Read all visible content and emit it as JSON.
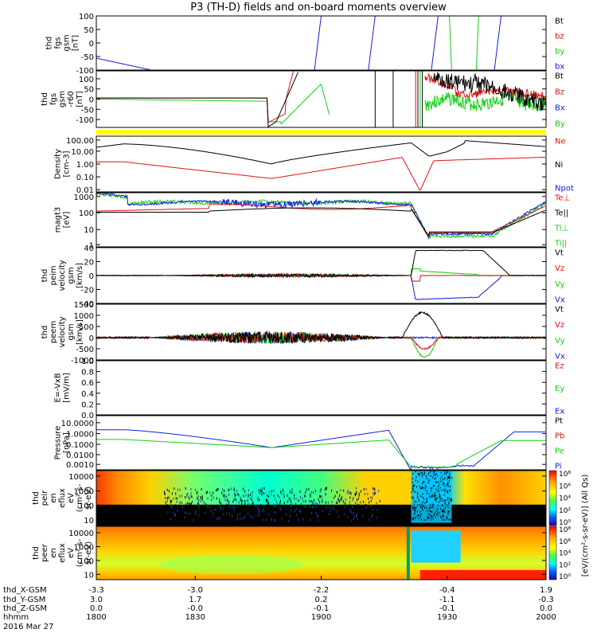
{
  "title": "P3 (TH-D) fields and on-board moments overview",
  "colors": {
    "black": "#000000",
    "red": "#e01010",
    "green": "#10d010",
    "blue": "#1020e0",
    "yellow": "#ffff00"
  },
  "footer": {
    "row_labels": [
      "thd_X-GSM",
      "thd_Y-GSM",
      "thd_Z-GSM",
      "hhmm",
      "2016 Mar 27"
    ],
    "x_gsm": [
      "-3.3",
      "-3.0",
      "-2.2",
      "-0.4",
      "1.9"
    ],
    "y_gsm": [
      "3.0",
      "1.7",
      "0.2",
      "-1.1",
      "-0.3"
    ],
    "z_gsm": [
      "0.0",
      "-0.0",
      "-0.1",
      "-0.1",
      "0.0"
    ],
    "hhmm": [
      "1800",
      "1830",
      "1900",
      "1930",
      "2000"
    ]
  },
  "colorbar": {
    "tick_labels": [
      "10⁸",
      "10⁶",
      "10⁴",
      "10²",
      "10⁰"
    ],
    "label": "[eV/(cm²-s-sr-eV)] (All Qs)"
  },
  "chart_data": [
    {
      "type": "line",
      "panel": "fgs",
      "ylabel": [
        "thd",
        "fgs",
        "gsm",
        "[nT]"
      ],
      "ylim": [
        -100,
        100
      ],
      "yticks": [
        "100",
        "50",
        "0",
        "-50",
        "-100"
      ],
      "legend": [
        {
          "name": "Bt",
          "color": "#000000"
        },
        {
          "name": "bz",
          "color": "#e01010"
        },
        {
          "name": "by",
          "color": "#10d010"
        },
        {
          "name": "bx",
          "color": "#1020e0"
        }
      ]
    },
    {
      "type": "line",
      "panel": "fgs-r",
      "ylabel": [
        "thd",
        "fgs",
        "gsm",
        "-r60",
        "[nT]"
      ],
      "ylim": [
        -120,
        120
      ],
      "yticks": [
        "100",
        "50",
        "0",
        "-50",
        "-100"
      ],
      "legend": [
        {
          "name": "Bt",
          "color": "#000000"
        },
        {
          "name": "Bz",
          "color": "#e01010"
        },
        {
          "name": "Bx",
          "color": "#1020e0"
        },
        {
          "name": "By",
          "color": "#10d010"
        }
      ]
    },
    {
      "type": "line",
      "panel": "density",
      "ylabel": [
        "Density",
        "[cm-3]"
      ],
      "scale": "log",
      "ylim": [
        0.01,
        300
      ],
      "yticks": [
        "100.00",
        "10.00",
        "1.00",
        "0.10",
        "0.01"
      ],
      "legend": [
        {
          "name": "Ne",
          "color": "#e01010"
        },
        {
          "name": "Ni",
          "color": "#000000"
        },
        {
          "name": "Npot",
          "color": "#1020e0"
        }
      ]
    },
    {
      "type": "line",
      "panel": "temperature",
      "ylabel": [
        "magt3",
        "[eV]"
      ],
      "scale": "log",
      "ylim": [
        1,
        10000
      ],
      "yticks": [
        "1000",
        "100",
        "10",
        "1"
      ],
      "legend": [
        {
          "name": "Te⊥",
          "color": "#e01010"
        },
        {
          "name": "Te||",
          "color": "#000000"
        },
        {
          "name": "Ti⊥",
          "color": "#10d010"
        },
        {
          "name": "Ti||",
          "color": "#10d010"
        }
      ]
    },
    {
      "type": "line",
      "panel": "peim-velocity",
      "ylabel": [
        "thd",
        "peim",
        "velocity",
        "gsm",
        "[km/s]"
      ],
      "ylim": [
        -40,
        40
      ],
      "yticks": [
        "40",
        "20",
        "0",
        "-20",
        "-40"
      ],
      "legend": [
        {
          "name": "Vt",
          "color": "#000000"
        },
        {
          "name": "Vz",
          "color": "#e01010"
        },
        {
          "name": "Vy",
          "color": "#10d010"
        },
        {
          "name": "Vx",
          "color": "#1020e0"
        }
      ]
    },
    {
      "type": "line",
      "panel": "peem-velocity",
      "ylabel": [
        "thd",
        "peem",
        "velocity",
        "gsm",
        "[km/s]"
      ],
      "ylim": [
        -1000,
        1500
      ],
      "yticks": [
        "1500",
        "1000",
        "500",
        "0",
        "-500",
        "-1000"
      ],
      "legend": [
        {
          "name": "Vt",
          "color": "#000000"
        },
        {
          "name": "Vz",
          "color": "#e01010"
        },
        {
          "name": "Vy",
          "color": "#10d010"
        },
        {
          "name": "Vx",
          "color": "#1020e0"
        }
      ]
    },
    {
      "type": "line",
      "panel": "efield",
      "ylabel": [
        "E=-VxB",
        "[mV/m]"
      ],
      "ylim": [
        0,
        1
      ],
      "yticks": [
        "1.0",
        "0.8",
        "0.6",
        "0.4",
        "0.2",
        "0.0"
      ],
      "legend": [
        {
          "name": "Ez",
          "color": "#e01010"
        },
        {
          "name": "Ey",
          "color": "#10d010"
        },
        {
          "name": "Ex",
          "color": "#1020e0"
        }
      ]
    },
    {
      "type": "line",
      "panel": "pressure",
      "ylabel": [
        "Pressure",
        "[nPa]"
      ],
      "scale": "log",
      "ylim": [
        0.0003,
        30
      ],
      "yticks": [
        "10.0000",
        "1.0000",
        "0.1000",
        "0.0100",
        "0.0010"
      ],
      "legend": [
        {
          "name": "Pt",
          "color": "#000000"
        },
        {
          "name": "Pb",
          "color": "#e01010"
        },
        {
          "name": "Pe",
          "color": "#10d010"
        },
        {
          "name": "Pi",
          "color": "#1020e0"
        }
      ]
    },
    {
      "type": "heatmap",
      "panel": "peir-spectrogram",
      "ylabel": [
        "thd",
        "peir",
        "en",
        "eflux",
        "eV",
        "(cm²-s-",
        "sr-eV)"
      ],
      "scale": "log",
      "ylim": [
        5,
        30000
      ],
      "yticks": [
        "10000",
        "1000",
        "100",
        "10"
      ]
    },
    {
      "type": "heatmap",
      "panel": "peer-spectrogram",
      "ylabel": [
        "thd",
        "peer",
        "en",
        "eflux",
        "eV",
        "(cm²-s-",
        "sr-eV)"
      ],
      "scale": "log",
      "ylim": [
        5,
        30000
      ],
      "yticks": [
        "10000",
        "1000",
        "100",
        "10"
      ]
    }
  ]
}
